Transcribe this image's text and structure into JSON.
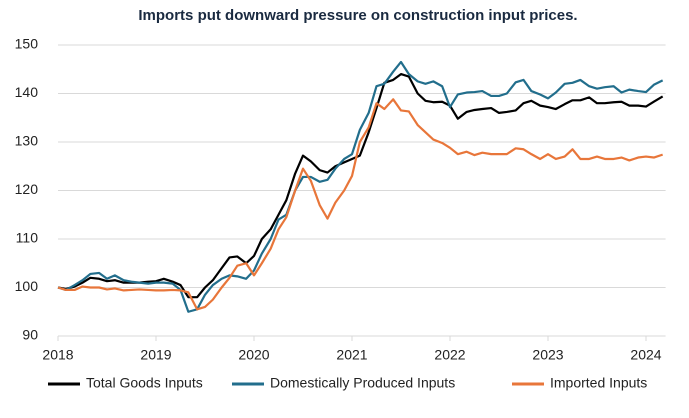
{
  "chart_data": {
    "type": "line",
    "title": "Imports put downward pressure on construction input prices.",
    "x": [
      2018,
      2018.08,
      2018.17,
      2018.25,
      2018.33,
      2018.42,
      2018.5,
      2018.58,
      2018.67,
      2018.75,
      2018.83,
      2018.92,
      2019,
      2019.08,
      2019.17,
      2019.25,
      2019.33,
      2019.42,
      2019.5,
      2019.58,
      2019.67,
      2019.75,
      2019.83,
      2019.92,
      2020,
      2020.08,
      2020.17,
      2020.25,
      2020.33,
      2020.42,
      2020.5,
      2020.58,
      2020.67,
      2020.75,
      2020.83,
      2020.92,
      2021,
      2021.08,
      2021.17,
      2021.25,
      2021.33,
      2021.42,
      2021.5,
      2021.58,
      2021.67,
      2021.75,
      2021.83,
      2021.92,
      2022,
      2022.08,
      2022.17,
      2022.25,
      2022.33,
      2022.42,
      2022.5,
      2022.58,
      2022.67,
      2022.75,
      2022.83,
      2022.92,
      2023,
      2023.08,
      2023.17,
      2023.25,
      2023.33,
      2023.42,
      2023.5,
      2023.58,
      2023.67,
      2023.75,
      2023.83,
      2023.92,
      2024,
      2024.08,
      2024.17
    ],
    "series": [
      {
        "name": "Total Goods Inputs",
        "color": "#000000",
        "values": [
          100,
          99.7,
          100.2,
          101,
          102,
          101.8,
          101.3,
          101.5,
          101,
          101,
          101,
          101.2,
          101.3,
          101.8,
          101.2,
          100.5,
          98,
          98,
          100,
          101.5,
          104,
          106.2,
          106.4,
          105,
          106.5,
          110,
          112,
          115,
          118,
          123.5,
          127.2,
          126,
          124.2,
          123.7,
          125,
          125.8,
          126.5,
          127.2,
          132,
          137,
          142.2,
          142.8,
          144,
          143.5,
          140,
          138.5,
          138.2,
          138.3,
          137.5,
          134.8,
          136.2,
          136.6,
          136.8,
          137,
          136,
          136.2,
          136.5,
          138,
          138.5,
          137.5,
          137.2,
          136.8,
          137.8,
          138.6,
          138.6,
          139.2,
          138,
          138,
          138.2,
          138.3,
          137.5,
          137.5,
          137.3,
          138.3,
          139.4
        ]
      },
      {
        "name": "Domestically Produced Inputs",
        "color": "#226e8c",
        "values": [
          100,
          99.5,
          100.5,
          101.5,
          102.8,
          103,
          101.8,
          102.5,
          101.5,
          101.2,
          101,
          100.8,
          101,
          101,
          100.8,
          99.5,
          95,
          95.5,
          98.5,
          100.5,
          101.8,
          102.5,
          102.3,
          101.8,
          103.5,
          107,
          110,
          114,
          115,
          120,
          122.8,
          122.8,
          121.8,
          122.2,
          124.5,
          126.5,
          127.5,
          132.5,
          136,
          141.5,
          142,
          144.5,
          146.5,
          144,
          142.5,
          142,
          142.5,
          141.5,
          137.2,
          139.8,
          140.2,
          140.3,
          140.5,
          139.5,
          139.5,
          140,
          142.3,
          142.8,
          140.5,
          139.8,
          139,
          140.2,
          142,
          142.2,
          142.8,
          141.5,
          141,
          141.3,
          141.5,
          140.2,
          140.8,
          140.5,
          140.3,
          141.8,
          142.7
        ]
      },
      {
        "name": "Imported Inputs",
        "color": "#e8763a",
        "values": [
          100,
          99.5,
          99.5,
          100.2,
          100,
          100,
          99.6,
          99.8,
          99.4,
          99.5,
          99.6,
          99.5,
          99.4,
          99.4,
          99.5,
          99.4,
          99,
          95.5,
          96,
          97.5,
          100,
          102,
          104.5,
          105,
          102.5,
          105,
          108,
          112,
          114.5,
          120,
          124.5,
          122,
          117,
          114.2,
          117.5,
          120,
          123,
          130,
          133,
          138,
          136.8,
          138.8,
          136.5,
          136.3,
          133.5,
          132,
          130.5,
          129.8,
          128.8,
          127.5,
          128,
          127.3,
          127.8,
          127.5,
          127.5,
          127.5,
          128.7,
          128.5,
          127.5,
          126.5,
          127.5,
          126.5,
          127,
          128.5,
          126.5,
          126.5,
          127,
          126.5,
          126.5,
          126.8,
          126.2,
          126.8,
          127,
          126.8,
          127.4
        ]
      }
    ],
    "xlim": [
      2018,
      2024.2
    ],
    "xticks": [
      2018,
      2019,
      2020,
      2021,
      2022,
      2023,
      2024
    ],
    "ylim": [
      90,
      150
    ],
    "yticks": [
      90,
      100,
      110,
      120,
      130,
      140,
      150
    ],
    "grid": true,
    "legend": "bottom"
  }
}
